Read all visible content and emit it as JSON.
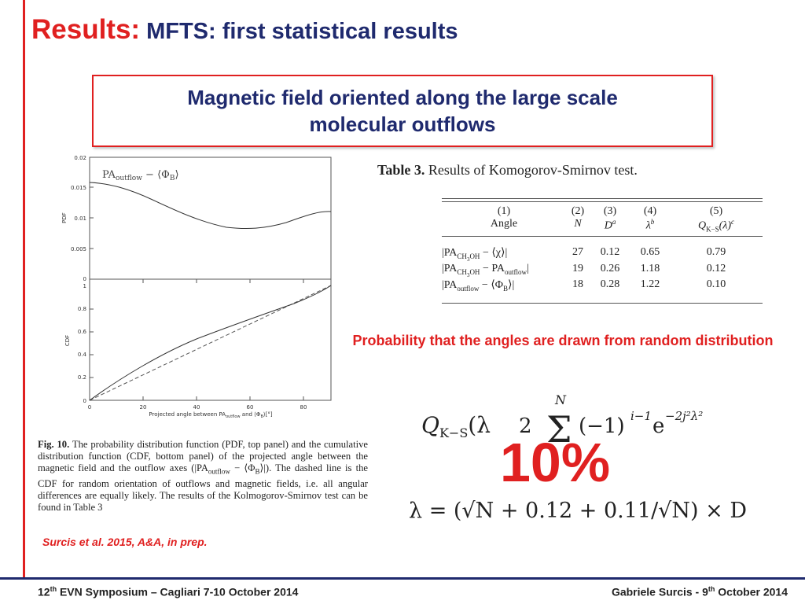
{
  "title": {
    "main": "Results:",
    "sub": "MFTS: first statistical results"
  },
  "subtitle": "Magnetic field oriented along the large scale molecular outflows",
  "plot": {
    "pdf_legend_main": "PA",
    "pdf_legend_sub": "outflow",
    "pdf_legend_rest": " − ⟨Φ",
    "pdf_legend_sub2": "B",
    "pdf_legend_end": "⟩",
    "pdf_ylabel": "PDF",
    "cdf_ylabel": "CDF",
    "pdf_yticks": [
      "0.02",
      "0.015",
      "0.01",
      "0.005",
      "0"
    ],
    "cdf_yticks": [
      "1",
      "0.8",
      "0.6",
      "0.4",
      "0.2",
      "0"
    ],
    "xticks": [
      "0",
      "20",
      "40",
      "60",
      "80"
    ],
    "xlabel": "Projected angle between PA",
    "xlabel_sub": "outflow",
    "xlabel_rest": " and ⟨Φ",
    "xlabel_sub2": "B",
    "xlabel_end": "⟩[°]"
  },
  "caption": {
    "label": "Fig. 10.",
    "text": "The probability distribution function (PDF, top panel) and the cumulative distribution function (CDF, bottom panel) of the projected angle between the magnetic field and the outflow axes (|PA",
    "sub": "outflow",
    "text2": " − ⟨Φ",
    "sub2": "B",
    "text3": "⟩|). The dashed line is the CDF for random orientation of outflows and magnetic fields, i.e. all angular differences are equally likely. The results of the Kolmogorov-Smirnov test can be found in Table 3"
  },
  "citation": "Surcis et al. 2015, A&A, in prep.",
  "table": {
    "label": "Table 3.",
    "title": "Results of Komogorov-Smirnov test.",
    "header_nums": [
      "(1)",
      "(2)",
      "(3)",
      "(4)",
      "(5)"
    ],
    "header_names": [
      "Angle",
      "N",
      "D",
      "λ",
      "Q"
    ],
    "header_sup": [
      "",
      "",
      "a",
      "b",
      "c"
    ],
    "header_q_sub": "K−S",
    "header_q_rest": "(λ)",
    "rows": [
      {
        "pre": "|PA",
        "sub": "CH",
        "sub_num": "3",
        "sub_rest": "OH",
        "post": " − ⟨χ⟩|",
        "n": "27",
        "d": "0.12",
        "l": "0.65",
        "q": "0.79"
      },
      {
        "pre": "|PA",
        "sub": "CH",
        "sub_num": "3",
        "sub_rest": "OH",
        "post": " − PA",
        "post_sub": "outflow",
        "post_end": "|",
        "n": "19",
        "d": "0.26",
        "l": "1.18",
        "q": "0.12"
      },
      {
        "pre": "|PA",
        "sub": "outflow",
        "post": " − ⟨Φ",
        "post_sub": "B",
        "post_end": "⟩|",
        "n": "18",
        "d": "0.28",
        "l": "1.22",
        "q": "0.10"
      }
    ]
  },
  "probability_text": "Probability that the angles are drawn from random distribution",
  "formula": {
    "q_lhs": "Q",
    "q_sub": "K−S",
    "q_paren": "(λ",
    "q_coef": "2",
    "sum_top": "N",
    "sum_sym": "Σ",
    "q_term": "(−1)",
    "q_exp1": "i−1",
    "q_e": "e",
    "q_exp2": "−2j²λ²",
    "lambda_line": "λ = (√N + 0.12 + 0.11/√N) × D"
  },
  "big_percent": "10%",
  "footer": {
    "left_pre": "12",
    "left_sup": "th",
    "left_post": " EVN Symposium – Cagliari 7-10 October 2014",
    "right_pre": "Gabriele Surcis -  9",
    "right_sup": "th",
    "right_post": " October 2014"
  },
  "colors": {
    "accent_red": "#e02020",
    "navy": "#1f2a6e"
  }
}
